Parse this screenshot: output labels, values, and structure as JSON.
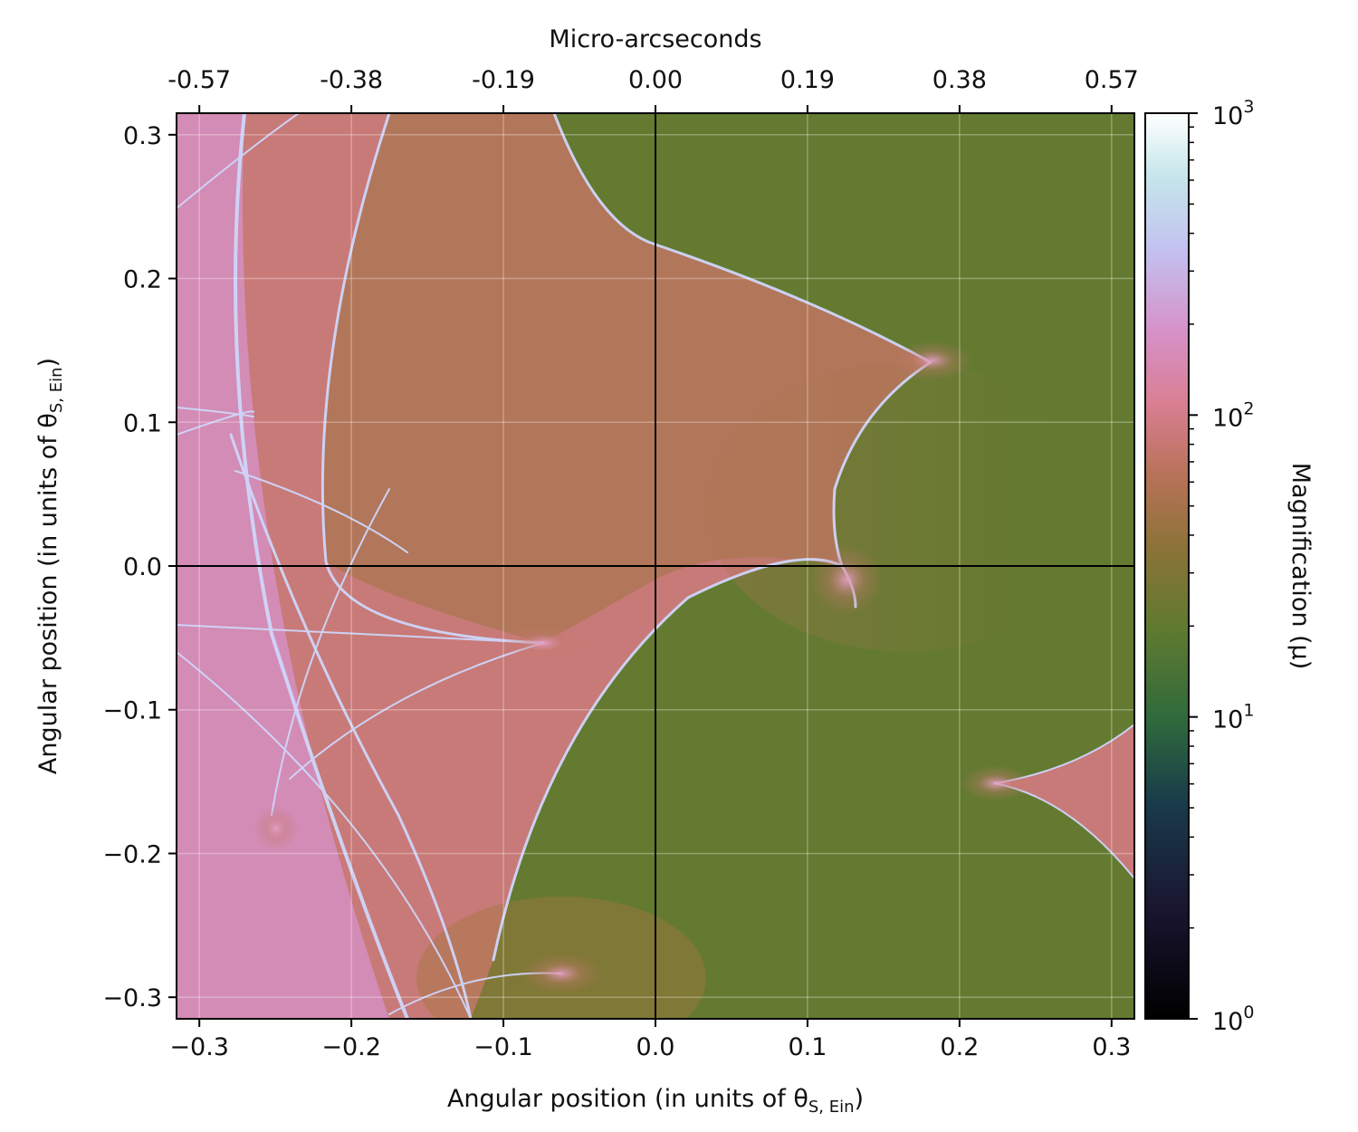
{
  "chart_data": {
    "type": "heatmap",
    "title": "",
    "xlabel_prefix": "Angular position (in units of θ",
    "xlabel_sub": "S, Ein",
    "xlabel_suffix": ")",
    "ylabel_prefix": "Angular position (in units of θ",
    "ylabel_sub": "S, Ein",
    "ylabel_suffix": ")",
    "top_xlabel": "Micro-arcseconds",
    "xlim": [
      -0.315,
      0.315
    ],
    "ylim": [
      -0.315,
      0.315
    ],
    "x_ticks": [
      -0.3,
      -0.2,
      -0.1,
      0.0,
      0.1,
      0.2,
      0.3
    ],
    "x_tick_labels": [
      "−0.3",
      "−0.2",
      "−0.1",
      "0.0",
      "0.1",
      "0.2",
      "0.3"
    ],
    "y_ticks": [
      0.3,
      0.2,
      0.1,
      0.0,
      -0.1,
      -0.2,
      -0.3
    ],
    "y_tick_labels": [
      "0.3",
      "0.2",
      "0.1",
      "0.0",
      "−0.1",
      "−0.2",
      "−0.3"
    ],
    "top_ticks": [
      -0.3,
      -0.2,
      -0.1,
      0.0,
      0.1,
      0.2,
      0.3
    ],
    "top_tick_labels": [
      "-0.57",
      "-0.38",
      "-0.19",
      "0.00",
      "0.19",
      "0.38",
      "0.57"
    ],
    "grid": true,
    "colorbar": {
      "label": "Magnification (μ)",
      "scale": "log",
      "range": [
        1,
        1000
      ],
      "ticks": [
        {
          "value": 1000,
          "base": "10",
          "exp": "3"
        },
        {
          "value": 100,
          "base": "10",
          "exp": "2"
        },
        {
          "value": 10,
          "base": "10",
          "exp": "1"
        },
        {
          "value": 1,
          "base": "10",
          "exp": "0"
        }
      ],
      "colormap": "cubehelix"
    },
    "regions": {
      "background_color": "#637a30",
      "high_magnification_color": "#c67878",
      "caustic_color": "#c8c8f4"
    }
  }
}
